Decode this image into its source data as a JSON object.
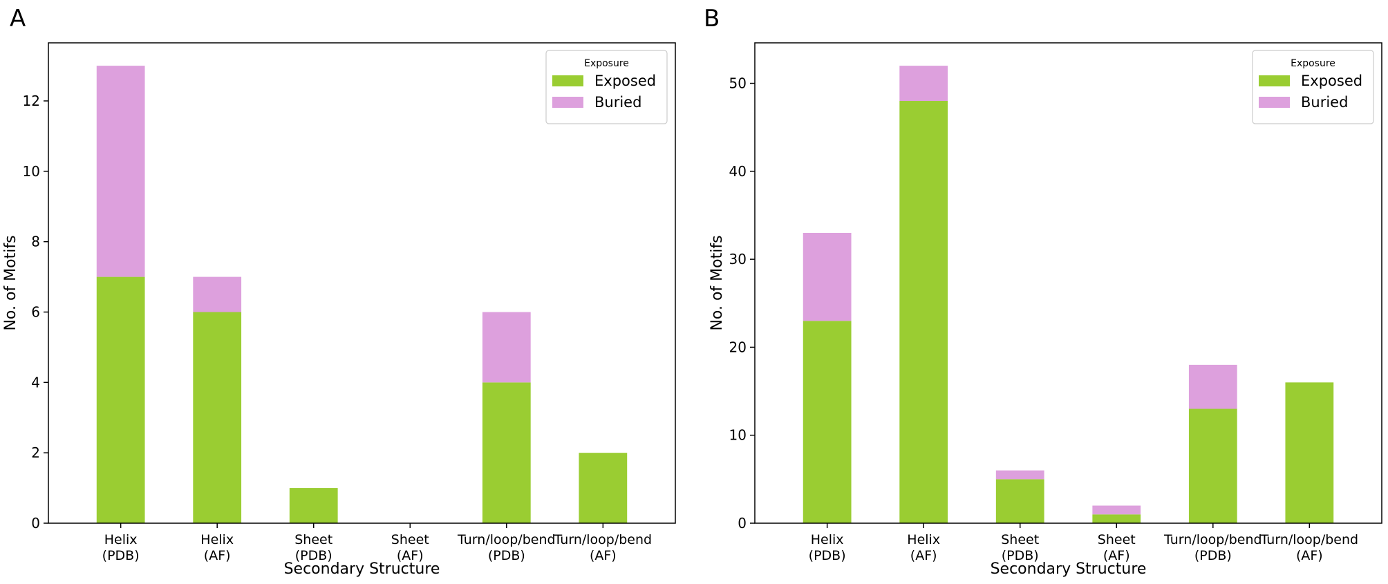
{
  "colors": {
    "exposed": "#9ACD32",
    "buried": "#DDA0DD"
  },
  "chart_data": [
    {
      "panel_label": "A",
      "type": "bar",
      "stacked": true,
      "categories": [
        [
          "Helix",
          "(PDB)"
        ],
        [
          "Helix",
          "(AF)"
        ],
        [
          "Sheet",
          "(PDB)"
        ],
        [
          "Sheet",
          "(AF)"
        ],
        [
          "Turn/loop/bend",
          "(PDB)"
        ],
        [
          "Turn/loop/bend",
          "(AF)"
        ]
      ],
      "series": [
        {
          "name": "Exposed",
          "values": [
            7,
            6,
            1,
            0,
            4,
            2
          ]
        },
        {
          "name": "Buried",
          "values": [
            6,
            1,
            0,
            0,
            2,
            0
          ]
        }
      ],
      "xlabel": "Secondary Structure",
      "ylabel": "No. of Motifs",
      "ylim": [
        0,
        13.65
      ],
      "yticks": [
        0,
        2,
        4,
        6,
        8,
        10,
        12
      ],
      "legend": {
        "title": "Exposure",
        "placement": "top-right"
      },
      "grid": false
    },
    {
      "panel_label": "B",
      "type": "bar",
      "stacked": true,
      "categories": [
        [
          "Helix",
          "(PDB)"
        ],
        [
          "Helix",
          "(AF)"
        ],
        [
          "Sheet",
          "(PDB)"
        ],
        [
          "Sheet",
          "(AF)"
        ],
        [
          "Turn/loop/bend",
          "(PDB)"
        ],
        [
          "Turn/loop/bend",
          "(AF)"
        ]
      ],
      "series": [
        {
          "name": "Exposed",
          "values": [
            23,
            48,
            5,
            1,
            13,
            16
          ]
        },
        {
          "name": "Buried",
          "values": [
            10,
            4,
            1,
            1,
            5,
            0
          ]
        }
      ],
      "xlabel": "Secondary Structure",
      "ylabel": "No. of Motifs",
      "ylim": [
        0,
        54.6
      ],
      "yticks": [
        0,
        10,
        20,
        30,
        40,
        50
      ],
      "legend": {
        "title": "Exposure",
        "placement": "top-right"
      },
      "grid": false
    }
  ]
}
